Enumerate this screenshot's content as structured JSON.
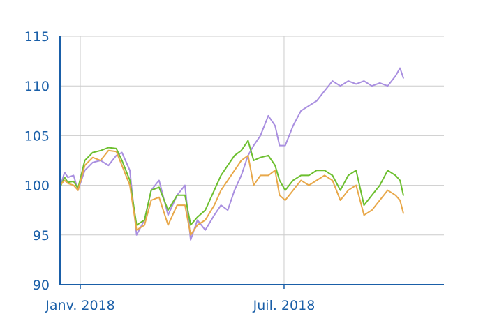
{
  "chart_data": {
    "type": "line",
    "title": "",
    "xlabel": "",
    "ylabel": "",
    "ylim": [
      90,
      115
    ],
    "xlim": [
      "2017-12-14",
      "2018-11-20"
    ],
    "grid": true,
    "legend": "none",
    "yticks": [
      90,
      95,
      100,
      105,
      110,
      115
    ],
    "xticks": [
      {
        "date": "2018-01-01",
        "label": "Janv. 2018"
      },
      {
        "date": "2018-07-01",
        "label": "Juil. 2018"
      }
    ],
    "colors": {
      "axis": "#1a5fa8",
      "grid": "#cccccc",
      "tick_text": "#1a5fa8"
    },
    "series": [
      {
        "color": "#a98fe0",
        "points": [
          [
            "2017-12-14",
            99.8
          ],
          [
            "2017-12-18",
            101.3
          ],
          [
            "2017-12-21",
            100.8
          ],
          [
            "2017-12-26",
            101.0
          ],
          [
            "2017-12-30",
            99.5
          ],
          [
            "2018-01-05",
            101.5
          ],
          [
            "2018-01-12",
            102.3
          ],
          [
            "2018-01-19",
            102.5
          ],
          [
            "2018-01-26",
            102.0
          ],
          [
            "2018-02-02",
            103.0
          ],
          [
            "2018-02-07",
            103.3
          ],
          [
            "2018-02-14",
            101.5
          ],
          [
            "2018-02-20",
            95.0
          ],
          [
            "2018-02-27",
            96.5
          ],
          [
            "2018-03-05",
            99.5
          ],
          [
            "2018-03-12",
            100.5
          ],
          [
            "2018-03-20",
            97.0
          ],
          [
            "2018-03-28",
            99.0
          ],
          [
            "2018-04-04",
            100.0
          ],
          [
            "2018-04-09",
            94.5
          ],
          [
            "2018-04-15",
            96.5
          ],
          [
            "2018-04-22",
            95.5
          ],
          [
            "2018-04-30",
            97.0
          ],
          [
            "2018-05-06",
            98.0
          ],
          [
            "2018-05-12",
            97.5
          ],
          [
            "2018-05-18",
            99.5
          ],
          [
            "2018-05-24",
            101.0
          ],
          [
            "2018-05-30",
            103.0
          ],
          [
            "2018-06-04",
            104.0
          ],
          [
            "2018-06-10",
            105.0
          ],
          [
            "2018-06-17",
            107.0
          ],
          [
            "2018-06-23",
            106.0
          ],
          [
            "2018-06-27",
            104.0
          ],
          [
            "2018-07-02",
            104.0
          ],
          [
            "2018-07-09",
            106.0
          ],
          [
            "2018-07-16",
            107.5
          ],
          [
            "2018-07-23",
            108.0
          ],
          [
            "2018-07-30",
            108.5
          ],
          [
            "2018-08-06",
            109.5
          ],
          [
            "2018-08-13",
            110.5
          ],
          [
            "2018-08-20",
            110.0
          ],
          [
            "2018-08-27",
            110.5
          ],
          [
            "2018-09-03",
            110.2
          ],
          [
            "2018-09-10",
            110.5
          ],
          [
            "2018-09-17",
            110.0
          ],
          [
            "2018-09-24",
            110.3
          ],
          [
            "2018-10-01",
            110.0
          ],
          [
            "2018-10-08",
            111.0
          ],
          [
            "2018-10-12",
            111.8
          ],
          [
            "2018-10-15",
            110.8
          ]
        ]
      },
      {
        "color": "#6cbf2e",
        "points": [
          [
            "2017-12-14",
            99.8
          ],
          [
            "2017-12-18",
            100.8
          ],
          [
            "2017-12-21",
            100.3
          ],
          [
            "2017-12-26",
            100.4
          ],
          [
            "2017-12-30",
            99.7
          ],
          [
            "2018-01-05",
            102.5
          ],
          [
            "2018-01-12",
            103.3
          ],
          [
            "2018-01-19",
            103.5
          ],
          [
            "2018-01-26",
            103.8
          ],
          [
            "2018-02-02",
            103.7
          ],
          [
            "2018-02-07",
            102.5
          ],
          [
            "2018-02-14",
            100.5
          ],
          [
            "2018-02-20",
            96.0
          ],
          [
            "2018-02-27",
            96.5
          ],
          [
            "2018-03-05",
            99.5
          ],
          [
            "2018-03-12",
            99.8
          ],
          [
            "2018-03-20",
            97.5
          ],
          [
            "2018-03-28",
            99.0
          ],
          [
            "2018-04-04",
            99.0
          ],
          [
            "2018-04-09",
            96.0
          ],
          [
            "2018-04-15",
            96.8
          ],
          [
            "2018-04-22",
            97.5
          ],
          [
            "2018-04-30",
            99.5
          ],
          [
            "2018-05-06",
            101.0
          ],
          [
            "2018-05-12",
            102.0
          ],
          [
            "2018-05-18",
            103.0
          ],
          [
            "2018-05-24",
            103.5
          ],
          [
            "2018-05-30",
            104.5
          ],
          [
            "2018-06-04",
            102.5
          ],
          [
            "2018-06-10",
            102.8
          ],
          [
            "2018-06-17",
            103.0
          ],
          [
            "2018-06-23",
            102.0
          ],
          [
            "2018-06-27",
            100.5
          ],
          [
            "2018-07-02",
            99.5
          ],
          [
            "2018-07-09",
            100.5
          ],
          [
            "2018-07-16",
            101.0
          ],
          [
            "2018-07-23",
            101.0
          ],
          [
            "2018-07-30",
            101.5
          ],
          [
            "2018-08-06",
            101.5
          ],
          [
            "2018-08-13",
            101.0
          ],
          [
            "2018-08-20",
            99.5
          ],
          [
            "2018-08-27",
            101.0
          ],
          [
            "2018-09-03",
            101.5
          ],
          [
            "2018-09-10",
            98.0
          ],
          [
            "2018-09-17",
            99.0
          ],
          [
            "2018-09-24",
            100.0
          ],
          [
            "2018-10-01",
            101.5
          ],
          [
            "2018-10-08",
            101.0
          ],
          [
            "2018-10-12",
            100.5
          ],
          [
            "2018-10-15",
            99.0
          ]
        ]
      },
      {
        "color": "#e8a84a",
        "points": [
          [
            "2017-12-14",
            100.0
          ],
          [
            "2017-12-18",
            100.5
          ],
          [
            "2017-12-21",
            100.2
          ],
          [
            "2017-12-26",
            100.0
          ],
          [
            "2017-12-30",
            99.5
          ],
          [
            "2018-01-05",
            102.0
          ],
          [
            "2018-01-12",
            102.8
          ],
          [
            "2018-01-19",
            102.5
          ],
          [
            "2018-01-26",
            103.5
          ],
          [
            "2018-02-02",
            103.4
          ],
          [
            "2018-02-07",
            102.0
          ],
          [
            "2018-02-14",
            100.0
          ],
          [
            "2018-02-20",
            95.5
          ],
          [
            "2018-02-27",
            96.0
          ],
          [
            "2018-03-05",
            98.5
          ],
          [
            "2018-03-12",
            98.8
          ],
          [
            "2018-03-20",
            96.0
          ],
          [
            "2018-03-28",
            98.0
          ],
          [
            "2018-04-04",
            98.0
          ],
          [
            "2018-04-09",
            95.0
          ],
          [
            "2018-04-15",
            96.0
          ],
          [
            "2018-04-22",
            96.5
          ],
          [
            "2018-04-30",
            98.0
          ],
          [
            "2018-05-06",
            99.5
          ],
          [
            "2018-05-12",
            100.5
          ],
          [
            "2018-05-18",
            101.5
          ],
          [
            "2018-05-24",
            102.5
          ],
          [
            "2018-05-30",
            103.0
          ],
          [
            "2018-06-04",
            100.0
          ],
          [
            "2018-06-10",
            101.0
          ],
          [
            "2018-06-17",
            101.0
          ],
          [
            "2018-06-23",
            101.5
          ],
          [
            "2018-06-27",
            99.0
          ],
          [
            "2018-07-02",
            98.5
          ],
          [
            "2018-07-09",
            99.5
          ],
          [
            "2018-07-16",
            100.5
          ],
          [
            "2018-07-23",
            100.0
          ],
          [
            "2018-07-30",
            100.5
          ],
          [
            "2018-08-06",
            101.0
          ],
          [
            "2018-08-13",
            100.5
          ],
          [
            "2018-08-20",
            98.5
          ],
          [
            "2018-08-27",
            99.5
          ],
          [
            "2018-09-03",
            100.0
          ],
          [
            "2018-09-10",
            97.0
          ],
          [
            "2018-09-17",
            97.5
          ],
          [
            "2018-09-24",
            98.5
          ],
          [
            "2018-10-01",
            99.5
          ],
          [
            "2018-10-08",
            99.0
          ],
          [
            "2018-10-12",
            98.5
          ],
          [
            "2018-10-15",
            97.2
          ]
        ]
      }
    ]
  }
}
